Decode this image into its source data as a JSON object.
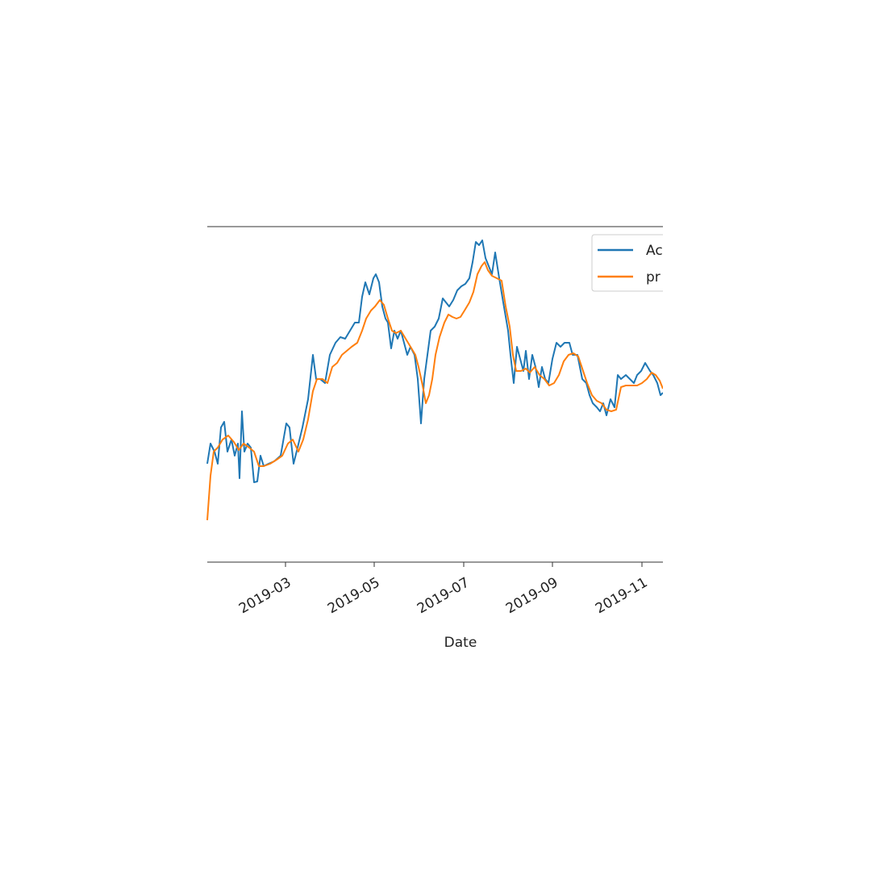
{
  "chart_data": {
    "type": "line",
    "xlabel": "Date",
    "legend": "upper right",
    "xlim": [
      0,
      565
    ],
    "ylim": [
      0,
      416
    ],
    "xticks": [
      {
        "value": 97,
        "label": "2019-03"
      },
      {
        "value": 207,
        "label": "2019-05"
      },
      {
        "value": 318,
        "label": "2019-07"
      },
      {
        "value": 428,
        "label": "2019-09"
      },
      {
        "value": 539,
        "label": "2019-11"
      }
    ],
    "series": [
      {
        "name": "Ac",
        "color": "#1f77b4",
        "x": [
          0,
          4,
          9,
          13,
          17,
          21,
          25,
          30,
          34,
          38,
          40,
          43,
          46,
          50,
          54,
          58,
          62,
          66,
          70,
          76,
          83,
          91,
          98,
          102,
          107,
          112,
          118,
          125,
          131,
          135,
          140,
          146,
          152,
          159,
          165,
          171,
          177,
          183,
          188,
          192,
          196,
          201,
          206,
          209,
          213,
          217,
          221,
          224,
          228,
          232,
          236,
          240,
          244,
          248,
          252,
          257,
          261,
          265,
          269,
          273,
          277,
          282,
          287,
          292,
          296,
          300,
          305,
          310,
          315,
          320,
          325,
          329,
          333,
          337,
          341,
          345,
          349,
          353,
          357,
          362,
          367,
          373,
          376,
          380,
          384,
          388,
          392,
          395,
          399,
          403,
          407,
          411,
          415,
          419,
          423,
          428,
          433,
          438,
          443,
          449,
          453,
          459,
          465,
          470,
          474,
          478,
          483,
          487,
          491,
          495,
          500,
          505,
          509,
          513,
          519,
          524,
          529,
          533,
          538,
          543,
          549,
          553,
          558,
          562,
          565
        ],
        "values": [
          122,
          147,
          137,
          122,
          167,
          174,
          137,
          152,
          132,
          147,
          104,
          187,
          137,
          147,
          142,
          99,
          100,
          132,
          119,
          122,
          125,
          132,
          172,
          167,
          122,
          142,
          167,
          202,
          257,
          227,
          227,
          222,
          257,
          272,
          279,
          277,
          287,
          297,
          297,
          329,
          347,
          332,
          352,
          357,
          347,
          317,
          302,
          297,
          265,
          287,
          277,
          287,
          272,
          257,
          267,
          257,
          227,
          172,
          227,
          257,
          287,
          292,
          302,
          327,
          322,
          317,
          325,
          337,
          342,
          345,
          352,
          372,
          397,
          393,
          399,
          377,
          367,
          357,
          384,
          352,
          322,
          287,
          257,
          222,
          267,
          252,
          237,
          262,
          227,
          257,
          242,
          217,
          242,
          227,
          222,
          252,
          272,
          267,
          272,
          272,
          257,
          257,
          227,
          222,
          207,
          197,
          192,
          187,
          197,
          182,
          202,
          192,
          232,
          227,
          232,
          227,
          222,
          232,
          237,
          247,
          237,
          232,
          222,
          207,
          210
        ]
      },
      {
        "name": "pr",
        "color": "#ff7f0e",
        "x": [
          0,
          4,
          8,
          13,
          19,
          26,
          33,
          39,
          45,
          52,
          58,
          64,
          70,
          78,
          86,
          93,
          100,
          106,
          113,
          119,
          125,
          131,
          136,
          143,
          149,
          155,
          161,
          167,
          173,
          179,
          186,
          192,
          197,
          203,
          208,
          214,
          219,
          224,
          229,
          234,
          240,
          246,
          252,
          258,
          262,
          267,
          271,
          275,
          279,
          283,
          288,
          294,
          299,
          304,
          309,
          314,
          319,
          325,
          330,
          335,
          340,
          344,
          348,
          353,
          359,
          365,
          370,
          375,
          379,
          383,
          389,
          395,
          400,
          406,
          412,
          418,
          424,
          430,
          436,
          442,
          448,
          454,
          460,
          466,
          471,
          477,
          483,
          489,
          495,
          501,
          507,
          513,
          519,
          526,
          533,
          539,
          545,
          551,
          556,
          561,
          565
        ],
        "values": [
          52,
          107,
          137,
          142,
          152,
          157,
          149,
          139,
          147,
          142,
          137,
          119,
          119,
          122,
          127,
          132,
          147,
          152,
          137,
          152,
          177,
          212,
          227,
          227,
          222,
          242,
          247,
          257,
          262,
          267,
          272,
          287,
          302,
          312,
          317,
          325,
          319,
          302,
          287,
          284,
          287,
          277,
          267,
          257,
          242,
          219,
          197,
          207,
          227,
          257,
          279,
          297,
          307,
          304,
          302,
          304,
          312,
          322,
          335,
          357,
          367,
          372,
          362,
          355,
          352,
          349,
          317,
          292,
          257,
          237,
          237,
          240,
          235,
          242,
          232,
          227,
          219,
          222,
          232,
          249,
          257,
          259,
          255,
          237,
          222,
          207,
          200,
          197,
          189,
          187,
          189,
          217,
          219,
          219,
          219,
          222,
          227,
          235,
          232,
          225,
          215
        ]
      }
    ]
  }
}
